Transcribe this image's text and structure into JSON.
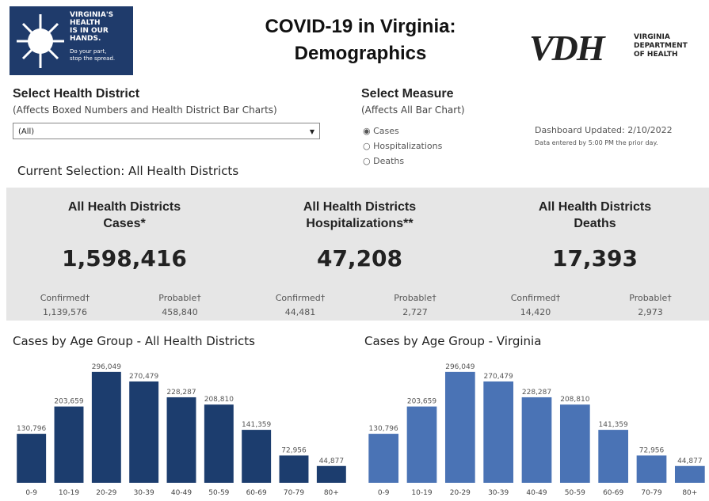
{
  "header": {
    "logo_left": [
      "VIRGINIA'S",
      "HEALTH",
      "IS IN OUR",
      "HANDS.",
      "Do your part,",
      "stop the spread."
    ],
    "title": [
      "COVID-19 in Virginia:",
      "Demographics"
    ],
    "logo_right": {
      "mark": "VDH",
      "text": [
        "VIRGINIA",
        "DEPARTMENT",
        "OF HEALTH"
      ]
    }
  },
  "filters": {
    "district": {
      "label": "Select Health District",
      "note": "(Affects Boxed Numbers and Health District Bar Charts)",
      "selected": "(All)"
    },
    "measure": {
      "label": "Select Measure",
      "note": "(Affects All Bar Chart)",
      "options": [
        "Cases",
        "Hospitalizations",
        "Deaths"
      ],
      "selected": 0
    }
  },
  "updated": [
    "Dashboard Updated: 2/10/2022",
    "Data entered by 5:00 PM the prior day."
  ],
  "selection": "Current Selection: All Health Districts",
  "stats": [
    {
      "title": [
        "All Health Districts",
        "Cases*"
      ],
      "total": "1,598,416",
      "confirmed_label": "Confirmed†",
      "confirmed": "1,139,576",
      "probable_label": "Probable†",
      "probable": "458,840"
    },
    {
      "title": [
        "All Health Districts",
        "Hospitalizations**"
      ],
      "total": "47,208",
      "confirmed_label": "Confirmed†",
      "confirmed": "44,481",
      "probable_label": "Probable†",
      "probable": "2,727"
    },
    {
      "title": [
        "All Health Districts",
        "Deaths"
      ],
      "total": "17,393",
      "confirmed_label": "Confirmed†",
      "confirmed": "14,420",
      "probable_label": "Probable†",
      "probable": "2,973"
    }
  ],
  "chart_data": [
    {
      "type": "bar",
      "title": "Cases by Age Group - All Health Districts",
      "color": "#1c3d6e",
      "categories": [
        "0-9",
        "10-19",
        "20-29",
        "30-39",
        "40-49",
        "50-59",
        "60-69",
        "70-79",
        "80+"
      ],
      "values": [
        130796,
        203659,
        296049,
        270479,
        228287,
        208810,
        141359,
        72956,
        44877
      ],
      "value_labels": [
        "130,796",
        "203,659",
        "296,049",
        "270,479",
        "228,287",
        "208,810",
        "141,359",
        "72,956",
        "44,877"
      ],
      "ylim": [
        0,
        300000
      ]
    },
    {
      "type": "bar",
      "title": "Cases by Age Group - Virginia",
      "color": "#4a73b5",
      "categories": [
        "0-9",
        "10-19",
        "20-29",
        "30-39",
        "40-49",
        "50-59",
        "60-69",
        "70-79",
        "80+"
      ],
      "values": [
        130796,
        203659,
        296049,
        270479,
        228287,
        208810,
        141359,
        72956,
        44877
      ],
      "value_labels": [
        "130,796",
        "203,659",
        "296,049",
        "270,479",
        "228,287",
        "208,810",
        "141,359",
        "72,956",
        "44,877"
      ],
      "ylim": [
        0,
        300000
      ]
    }
  ]
}
